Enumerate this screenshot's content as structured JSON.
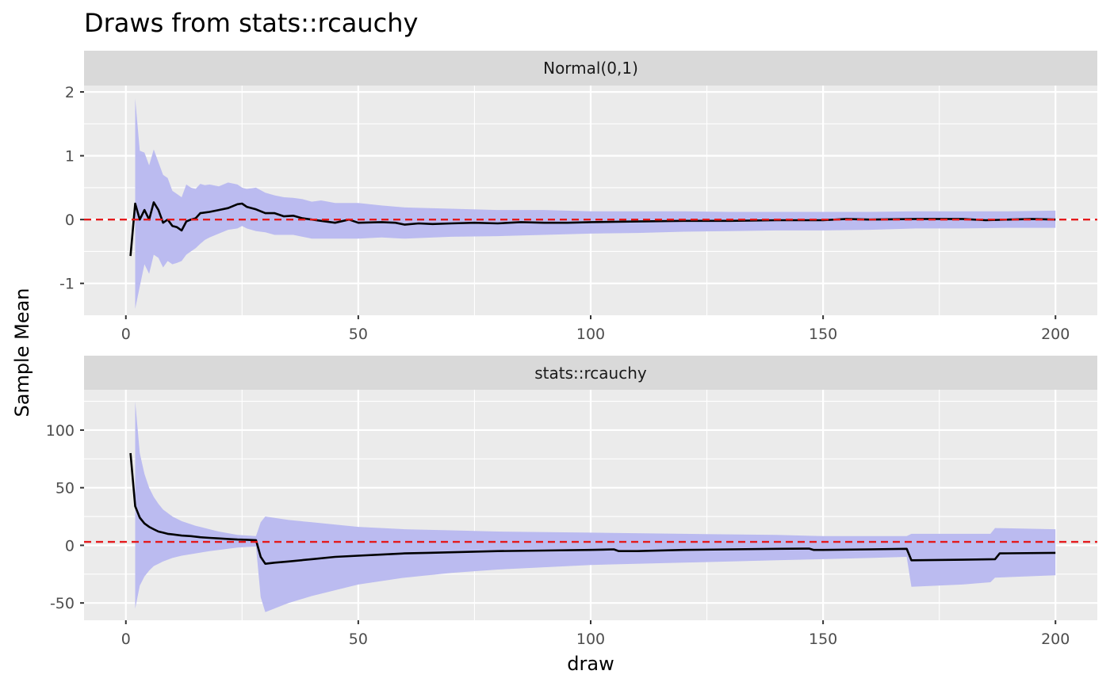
{
  "chart_data": {
    "type": "line",
    "title": "Draws from stats::rcauchy",
    "xlabel": "draw",
    "ylabel": "Sample Mean",
    "grid": true,
    "legend": "none",
    "colors": {
      "panel_bg": "#EBEBEB",
      "strip_bg": "#D9D9D9",
      "grid_major": "#FFFFFF",
      "line": "#000000",
      "band": "#BBBBF0",
      "reference": "#E41A1C"
    },
    "panels": [
      {
        "strip": "Normal(0,1)",
        "xlim": [
          -9,
          209
        ],
        "ylim": [
          -1.5,
          2.1
        ],
        "xticks": [
          0,
          50,
          100,
          150,
          200
        ],
        "xtick_labels": [
          "0",
          "50",
          "100",
          "150",
          "200"
        ],
        "yticks": [
          -1,
          0,
          1,
          2
        ],
        "ytick_labels": [
          "-1",
          "0",
          "1",
          "2"
        ],
        "reference_y": 0,
        "series": [
          {
            "role": "sample mean",
            "x": [
              1,
              2,
              3,
              4,
              5,
              6,
              7,
              8,
              9,
              10,
              11,
              12,
              13,
              14,
              15,
              16,
              17,
              18,
              20,
              22,
              24,
              25,
              26,
              28,
              30,
              32,
              34,
              36,
              38,
              40,
              42,
              45,
              48,
              50,
              55,
              58,
              60,
              63,
              66,
              70,
              75,
              80,
              85,
              90,
              95,
              100,
              110,
              120,
              130,
              140,
              150,
              155,
              160,
              170,
              180,
              185,
              190,
              195,
              200
            ],
            "values": [
              -0.57,
              0.25,
              0.0,
              0.15,
              0.0,
              0.27,
              0.15,
              -0.05,
              0.0,
              -0.1,
              -0.12,
              -0.17,
              -0.03,
              0.0,
              0.02,
              0.1,
              0.11,
              0.12,
              0.15,
              0.18,
              0.24,
              0.25,
              0.2,
              0.16,
              0.1,
              0.1,
              0.05,
              0.06,
              0.02,
              0.0,
              -0.02,
              -0.05,
              0.0,
              -0.05,
              -0.04,
              -0.05,
              -0.08,
              -0.06,
              -0.07,
              -0.06,
              -0.05,
              -0.06,
              -0.04,
              -0.05,
              -0.05,
              -0.04,
              -0.03,
              -0.02,
              -0.02,
              -0.01,
              -0.01,
              0.01,
              0.0,
              0.01,
              0.01,
              -0.01,
              0.0,
              0.01,
              0.0
            ]
          },
          {
            "role": "band",
            "x": [
              2,
              3,
              4,
              5,
              6,
              7,
              8,
              9,
              10,
              11,
              12,
              13,
              14,
              15,
              16,
              17,
              18,
              20,
              22,
              24,
              25,
              26,
              28,
              30,
              32,
              34,
              36,
              38,
              40,
              42,
              45,
              48,
              50,
              55,
              60,
              70,
              80,
              90,
              100,
              110,
              120,
              130,
              140,
              150,
              160,
              170,
              180,
              190,
              200
            ],
            "upper": [
              1.9,
              1.08,
              1.05,
              0.85,
              1.1,
              0.9,
              0.7,
              0.65,
              0.45,
              0.4,
              0.35,
              0.55,
              0.5,
              0.48,
              0.56,
              0.54,
              0.55,
              0.52,
              0.58,
              0.55,
              0.5,
              0.48,
              0.5,
              0.42,
              0.38,
              0.35,
              0.34,
              0.32,
              0.28,
              0.3,
              0.26,
              0.26,
              0.26,
              0.22,
              0.19,
              0.17,
              0.15,
              0.15,
              0.13,
              0.13,
              0.13,
              0.12,
              0.12,
              0.12,
              0.12,
              0.13,
              0.13,
              0.13,
              0.14
            ],
            "lower": [
              -1.4,
              -1.05,
              -0.7,
              -0.85,
              -0.55,
              -0.6,
              -0.75,
              -0.65,
              -0.7,
              -0.68,
              -0.65,
              -0.55,
              -0.5,
              -0.45,
              -0.38,
              -0.32,
              -0.28,
              -0.22,
              -0.16,
              -0.14,
              -0.1,
              -0.14,
              -0.18,
              -0.2,
              -0.24,
              -0.24,
              -0.24,
              -0.27,
              -0.3,
              -0.3,
              -0.3,
              -0.3,
              -0.3,
              -0.28,
              -0.3,
              -0.27,
              -0.26,
              -0.24,
              -0.22,
              -0.21,
              -0.19,
              -0.18,
              -0.17,
              -0.17,
              -0.16,
              -0.14,
              -0.14,
              -0.13,
              -0.13
            ]
          }
        ]
      },
      {
        "strip": "stats::rcauchy",
        "xlim": [
          -9,
          209
        ],
        "ylim": [
          -65,
          135
        ],
        "xticks": [
          0,
          50,
          100,
          150,
          200
        ],
        "xtick_labels": [
          "0",
          "50",
          "100",
          "150",
          "200"
        ],
        "yticks": [
          -50,
          0,
          50,
          100
        ],
        "ytick_labels": [
          "-50",
          "0",
          "50",
          "100"
        ],
        "reference_y": 3,
        "series": [
          {
            "role": "sample mean",
            "x": [
              1,
              2,
              3,
              4,
              5,
              6,
              7,
              8,
              9,
              10,
              12,
              14,
              16,
              18,
              20,
              22,
              24,
              26,
              28,
              29,
              30,
              32,
              35,
              40,
              45,
              50,
              55,
              60,
              65,
              70,
              80,
              90,
              100,
              105,
              106,
              110,
              120,
              130,
              140,
              147,
              148,
              150,
              160,
              168,
              169,
              180,
              187,
              188,
              200
            ],
            "values": [
              80,
              34,
              24,
              19,
              16,
              14,
              12,
              11,
              10,
              9.5,
              8.5,
              8,
              7,
              6.5,
              6,
              5.5,
              5,
              4.8,
              4.5,
              -10,
              -16,
              -15,
              -14,
              -12,
              -10,
              -9,
              -8,
              -7,
              -6.5,
              -6,
              -5,
              -4.5,
              -4,
              -3.5,
              -5,
              -5,
              -4,
              -3.5,
              -3,
              -2.8,
              -4,
              -4,
              -3.5,
              -3,
              -13,
              -12.5,
              -12,
              -7,
              -6.5
            ]
          },
          {
            "role": "band",
            "x": [
              2,
              3,
              4,
              5,
              6,
              7,
              8,
              10,
              12,
              15,
              18,
              20,
              24,
              28,
              29,
              30,
              35,
              40,
              50,
              60,
              70,
              80,
              100,
              120,
              140,
              150,
              160,
              168,
              169,
              180,
              186,
              187,
              200
            ],
            "upper": [
              125,
              80,
              62,
              50,
              42,
              36,
              31,
              25,
              21,
              17,
              14,
              12,
              9,
              8,
              20,
              25,
              22,
              20,
              16,
              14,
              13,
              12,
              11,
              10,
              9,
              8,
              8,
              8,
              10,
              10,
              10,
              15,
              14
            ],
            "lower": [
              -55,
              -35,
              -27,
              -22,
              -18,
              -16,
              -14,
              -11,
              -9,
              -7,
              -5,
              -4,
              -2,
              -1,
              -45,
              -58,
              -50,
              -44,
              -34,
              -28,
              -24,
              -21,
              -17,
              -15,
              -13,
              -12,
              -11,
              -10,
              -36,
              -34,
              -32,
              -28,
              -26
            ]
          }
        ]
      }
    ]
  }
}
